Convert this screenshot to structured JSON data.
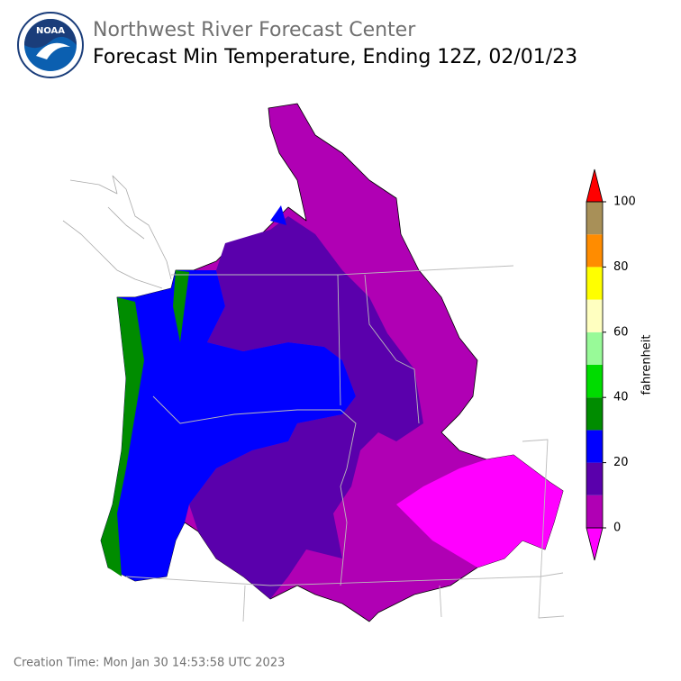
{
  "header": {
    "logo_text": "NOAA",
    "organization": "Northwest River Forecast Center",
    "title": "Forecast Min Temperature, Ending 12Z, 02/01/23"
  },
  "colorbar": {
    "label": "fahrenheit",
    "range": [
      0,
      100
    ],
    "ticks": [
      0,
      20,
      40,
      60,
      80,
      100
    ],
    "colors": [
      "#b000b4",
      "#5a00ac",
      "#0000ff",
      "#008c00",
      "#00dc00",
      "#98fa98",
      "#ffffc0",
      "#ffff00",
      "#ff8c00",
      "#a89058"
    ],
    "under_color": "#ff00ff",
    "over_color": "#ff0000"
  },
  "footer": {
    "creation_time": "Creation Time: Mon Jan 30 14:53:58 UTC 2023"
  }
}
